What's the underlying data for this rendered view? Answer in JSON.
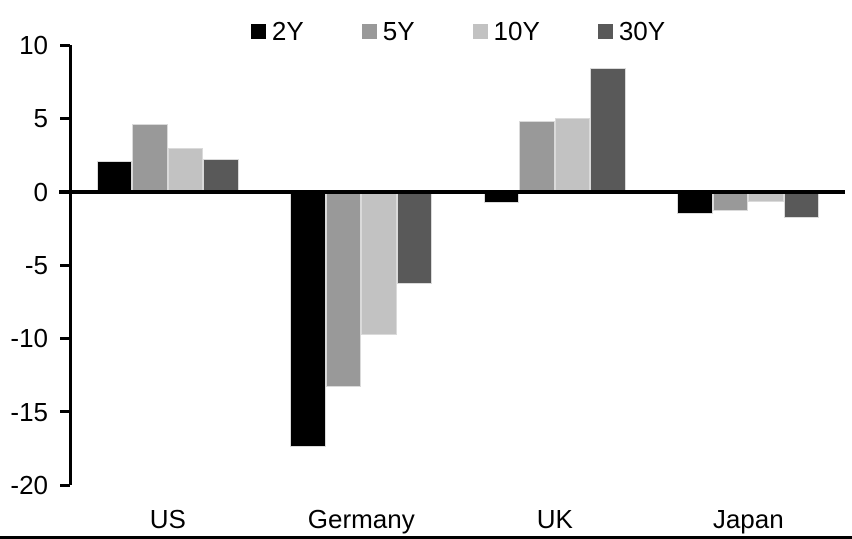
{
  "chart_data": {
    "type": "bar",
    "title": "",
    "xlabel": "",
    "ylabel": "",
    "categories": [
      "US",
      "Germany",
      "UK",
      "Japan"
    ],
    "series": [
      {
        "name": "2Y",
        "color": "#000000",
        "values": [
          2.1,
          -17.4,
          -0.8,
          -1.5
        ]
      },
      {
        "name": "5Y",
        "color": "#999999",
        "values": [
          4.6,
          -13.3,
          4.8,
          -1.3
        ]
      },
      {
        "name": "10Y",
        "color": "#c2c2c2",
        "values": [
          3.0,
          -9.8,
          5.0,
          -0.7
        ]
      },
      {
        "name": "30Y",
        "color": "#595959",
        "values": [
          2.2,
          -6.3,
          8.4,
          -1.8
        ]
      }
    ],
    "ylim": [
      -20,
      10
    ],
    "ytick_step": 5,
    "ytick_labels": [
      "10",
      "5",
      "0",
      "-5",
      "-10",
      "-15",
      "-20"
    ],
    "legend_position": "top-center",
    "legend_entries": [
      "2Y",
      "5Y",
      "10Y",
      "30Y"
    ],
    "grid": false,
    "axis_color": "#000000",
    "bar_border_color": "#dadada",
    "background_color": "#ffffff"
  }
}
